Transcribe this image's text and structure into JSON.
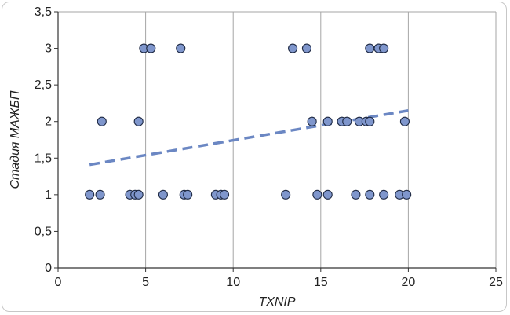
{
  "chart_data": {
    "type": "scatter",
    "xlabel": "TXNIP",
    "ylabel": "Стадия МАЖБП",
    "xlim": [
      0,
      25
    ],
    "ylim": [
      0,
      3.5
    ],
    "x_ticks": [
      "0",
      "5",
      "10",
      "15",
      "20",
      "25"
    ],
    "y_ticks": [
      "0",
      "0,5",
      "1",
      "1,5",
      "2",
      "2,5",
      "3",
      "3,5"
    ],
    "x_tick_values": [
      0,
      5,
      10,
      15,
      20,
      25
    ],
    "y_tick_values": [
      0,
      0.5,
      1,
      1.5,
      2,
      2.5,
      3,
      3.5
    ],
    "grid": "vertical",
    "points": [
      {
        "x": 1.8,
        "y": 1
      },
      {
        "x": 2.4,
        "y": 1
      },
      {
        "x": 4.1,
        "y": 1
      },
      {
        "x": 4.4,
        "y": 1
      },
      {
        "x": 4.6,
        "y": 1
      },
      {
        "x": 6.0,
        "y": 1
      },
      {
        "x": 7.2,
        "y": 1
      },
      {
        "x": 7.4,
        "y": 1
      },
      {
        "x": 9.0,
        "y": 1
      },
      {
        "x": 9.3,
        "y": 1
      },
      {
        "x": 9.5,
        "y": 1
      },
      {
        "x": 13.0,
        "y": 1
      },
      {
        "x": 14.8,
        "y": 1
      },
      {
        "x": 15.4,
        "y": 1
      },
      {
        "x": 17.0,
        "y": 1
      },
      {
        "x": 17.8,
        "y": 1
      },
      {
        "x": 18.6,
        "y": 1
      },
      {
        "x": 19.5,
        "y": 1
      },
      {
        "x": 19.9,
        "y": 1
      },
      {
        "x": 2.5,
        "y": 2
      },
      {
        "x": 4.6,
        "y": 2
      },
      {
        "x": 14.5,
        "y": 2
      },
      {
        "x": 15.4,
        "y": 2
      },
      {
        "x": 16.2,
        "y": 2
      },
      {
        "x": 16.5,
        "y": 2
      },
      {
        "x": 17.2,
        "y": 2
      },
      {
        "x": 17.6,
        "y": 2
      },
      {
        "x": 17.8,
        "y": 2
      },
      {
        "x": 19.8,
        "y": 2
      },
      {
        "x": 4.9,
        "y": 3
      },
      {
        "x": 5.3,
        "y": 3
      },
      {
        "x": 7.0,
        "y": 3
      },
      {
        "x": 13.4,
        "y": 3
      },
      {
        "x": 14.2,
        "y": 3
      },
      {
        "x": 17.8,
        "y": 3
      },
      {
        "x": 18.3,
        "y": 3
      },
      {
        "x": 18.6,
        "y": 3
      }
    ],
    "trendline": {
      "style": "dashed",
      "x": [
        1.8,
        20.0
      ],
      "y": [
        1.41,
        2.15
      ]
    },
    "colors": {
      "marker_fill": "#7f96cc",
      "marker_stroke": "#1f2a44",
      "trendline": "#6b87c3",
      "grid": "#a6a6a6"
    }
  }
}
